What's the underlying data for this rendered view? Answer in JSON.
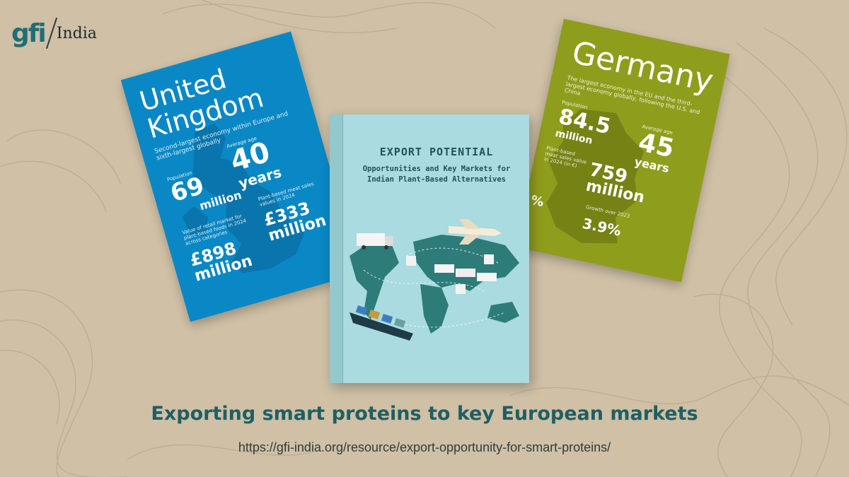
{
  "logo": {
    "brand": "gfi",
    "region": "India"
  },
  "uk_card": {
    "title_line1": "United",
    "title_line2": "Kingdom",
    "subtitle": "Second-largest economy within Europe and sixth-largest globally",
    "population_label": "Population",
    "population_value": "69",
    "population_unit": "million",
    "age_label": "Average age",
    "age_value": "40",
    "age_unit": "years",
    "retail_label": "Value of retail market for plant-based foods in 2024 across categories",
    "retail_value": "£898",
    "retail_unit": "million",
    "meat_label": "Plant-based meat sales values in 2024",
    "meat_value": "£333",
    "meat_unit": "million",
    "color": "#0a88c5"
  },
  "de_card": {
    "title": "Germany",
    "subtitle": "The largest economy in the EU and the third-largest economy globally, following the U.S. and China",
    "population_label": "Population",
    "population_value": "84.5",
    "population_unit": "million",
    "age_label": "Average age",
    "age_value": "45",
    "age_unit": "years",
    "sales_label": "Plant-based meat sales value in 2024 (in €)",
    "sales_value": "759",
    "sales_unit": "million",
    "growth_left_value": "%",
    "growth_label": "Growth over 2023",
    "growth_value": "3.9%",
    "color": "#8f9d1c"
  },
  "book": {
    "title": "EXPORT POTENTIAL",
    "subtitle_line1": "Opportunities and Key Markets for",
    "subtitle_line2": "Indian Plant-Based Alternatives",
    "color": "#a9dbe0"
  },
  "headline": "Exporting smart proteins to key European markets",
  "url": "https://gfi-india.org/resource/export-opportunity-for-smart-proteins/",
  "colors": {
    "background": "#cfc0a6",
    "headline": "#1f5f63"
  }
}
